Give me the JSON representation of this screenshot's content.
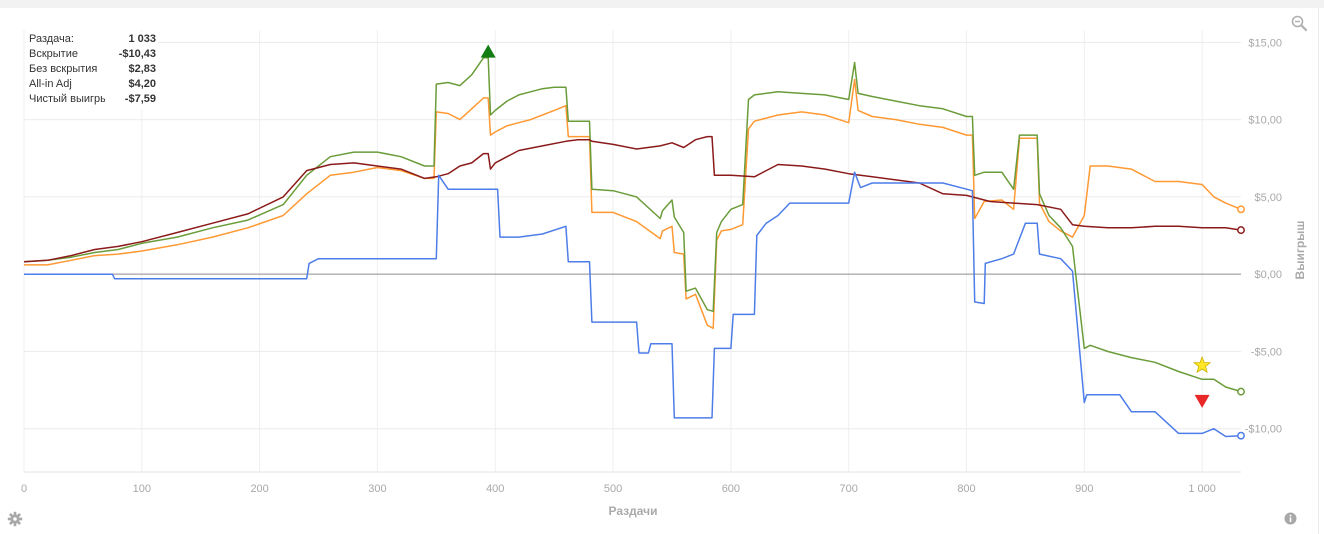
{
  "tooltip": {
    "rows": [
      {
        "label": "Раздача:",
        "value": "1 033"
      },
      {
        "label": "Вскрытие",
        "value": "-$10,43"
      },
      {
        "label": "Без вскрытия",
        "value": "$2,83"
      },
      {
        "label": "All-in Adj",
        "value": "$4,20"
      },
      {
        "label": "Чистый выигрыш",
        "value": "-$7,59"
      }
    ]
  },
  "icons": {
    "zoom": "zoom-icon",
    "settings": "gear-icon",
    "info": "info-icon"
  },
  "chart_data": {
    "type": "line",
    "xlabel": "Раздачи",
    "ylabel": "Выигрыш",
    "xlim": [
      0,
      1033
    ],
    "ylim": [
      -12.8,
      15.8
    ],
    "x_ticks": [
      0,
      100,
      200,
      300,
      400,
      500,
      600,
      700,
      800,
      900,
      1000
    ],
    "x_tick_labels": [
      "0",
      "100",
      "200",
      "300",
      "400",
      "500",
      "600",
      "700",
      "800",
      "900",
      "1 000"
    ],
    "y_ticks": [
      15,
      10,
      5,
      0,
      -5,
      -10
    ],
    "y_tick_labels": [
      "$15,00",
      "$10,00",
      "$5,00",
      "$0,00",
      "-$5,00",
      "-$10,00"
    ],
    "grid": true,
    "series": [
      {
        "color": "#ff9933",
        "points": [
          [
            0,
            0.6
          ],
          [
            20,
            0.6
          ],
          [
            40,
            0.9
          ],
          [
            60,
            1.2
          ],
          [
            80,
            1.3
          ],
          [
            100,
            1.5
          ],
          [
            130,
            1.9
          ],
          [
            160,
            2.4
          ],
          [
            190,
            3.0
          ],
          [
            220,
            3.8
          ],
          [
            240,
            5.2
          ],
          [
            260,
            6.4
          ],
          [
            280,
            6.6
          ],
          [
            300,
            6.9
          ],
          [
            320,
            6.7
          ],
          [
            340,
            6.2
          ],
          [
            348,
            6.2
          ],
          [
            350,
            10.5
          ],
          [
            360,
            10.4
          ],
          [
            370,
            10.0
          ],
          [
            380,
            10.7
          ],
          [
            390,
            11.4
          ],
          [
            394,
            11.4
          ],
          [
            396,
            9.0
          ],
          [
            400,
            9.2
          ],
          [
            410,
            9.6
          ],
          [
            420,
            9.8
          ],
          [
            430,
            10.0
          ],
          [
            440,
            10.3
          ],
          [
            450,
            10.6
          ],
          [
            460,
            10.9
          ],
          [
            462,
            8.9
          ],
          [
            480,
            8.9
          ],
          [
            482,
            4.0
          ],
          [
            500,
            4.0
          ],
          [
            520,
            3.4
          ],
          [
            540,
            2.3
          ],
          [
            542,
            2.8
          ],
          [
            550,
            3.1
          ],
          [
            552,
            1.4
          ],
          [
            560,
            1.3
          ],
          [
            562,
            -1.6
          ],
          [
            570,
            -1.3
          ],
          [
            580,
            -3.3
          ],
          [
            585,
            -3.5
          ],
          [
            588,
            2.2
          ],
          [
            592,
            2.8
          ],
          [
            600,
            2.9
          ],
          [
            610,
            3.2
          ],
          [
            615,
            9.4
          ],
          [
            620,
            9.9
          ],
          [
            640,
            10.3
          ],
          [
            660,
            10.5
          ],
          [
            680,
            10.3
          ],
          [
            700,
            9.8
          ],
          [
            705,
            12.6
          ],
          [
            708,
            10.6
          ],
          [
            720,
            10.2
          ],
          [
            740,
            10.0
          ],
          [
            760,
            9.7
          ],
          [
            780,
            9.5
          ],
          [
            800,
            9.0
          ],
          [
            805,
            9.0
          ],
          [
            807,
            3.6
          ],
          [
            815,
            4.7
          ],
          [
            830,
            4.8
          ],
          [
            840,
            4.2
          ],
          [
            845,
            8.8
          ],
          [
            860,
            8.8
          ],
          [
            862,
            4.6
          ],
          [
            870,
            3.4
          ],
          [
            880,
            2.8
          ],
          [
            890,
            2.4
          ],
          [
            900,
            3.8
          ],
          [
            905,
            7.0
          ],
          [
            920,
            7.0
          ],
          [
            940,
            6.8
          ],
          [
            960,
            6.0
          ],
          [
            980,
            6.0
          ],
          [
            1000,
            5.8
          ],
          [
            1010,
            5.0
          ],
          [
            1020,
            4.6
          ],
          [
            1033,
            4.2
          ]
        ]
      },
      {
        "color": "#6b9c3a",
        "points": [
          [
            0,
            0.8
          ],
          [
            20,
            0.9
          ],
          [
            40,
            1.1
          ],
          [
            60,
            1.4
          ],
          [
            80,
            1.6
          ],
          [
            100,
            2.0
          ],
          [
            130,
            2.4
          ],
          [
            160,
            3.0
          ],
          [
            190,
            3.5
          ],
          [
            220,
            4.5
          ],
          [
            240,
            6.4
          ],
          [
            260,
            7.6
          ],
          [
            280,
            7.9
          ],
          [
            300,
            7.9
          ],
          [
            320,
            7.6
          ],
          [
            340,
            7.0
          ],
          [
            348,
            7.0
          ],
          [
            350,
            12.3
          ],
          [
            360,
            12.4
          ],
          [
            370,
            12.2
          ],
          [
            380,
            12.9
          ],
          [
            390,
            14.0
          ],
          [
            394,
            14.0
          ],
          [
            396,
            10.3
          ],
          [
            400,
            10.6
          ],
          [
            410,
            11.2
          ],
          [
            420,
            11.6
          ],
          [
            430,
            11.8
          ],
          [
            440,
            12.0
          ],
          [
            450,
            12.1
          ],
          [
            460,
            12.1
          ],
          [
            462,
            9.9
          ],
          [
            480,
            9.9
          ],
          [
            482,
            5.5
          ],
          [
            500,
            5.4
          ],
          [
            520,
            5.0
          ],
          [
            540,
            3.6
          ],
          [
            542,
            4.1
          ],
          [
            550,
            4.8
          ],
          [
            552,
            3.7
          ],
          [
            560,
            2.7
          ],
          [
            562,
            -1.1
          ],
          [
            570,
            -0.9
          ],
          [
            580,
            -2.3
          ],
          [
            585,
            -2.4
          ],
          [
            588,
            2.7
          ],
          [
            592,
            3.4
          ],
          [
            600,
            4.2
          ],
          [
            610,
            4.5
          ],
          [
            615,
            11.3
          ],
          [
            620,
            11.6
          ],
          [
            640,
            11.8
          ],
          [
            660,
            11.7
          ],
          [
            680,
            11.6
          ],
          [
            700,
            11.3
          ],
          [
            705,
            13.7
          ],
          [
            708,
            11.7
          ],
          [
            720,
            11.5
          ],
          [
            740,
            11.2
          ],
          [
            760,
            10.9
          ],
          [
            780,
            10.7
          ],
          [
            800,
            10.2
          ],
          [
            805,
            10.2
          ],
          [
            807,
            6.4
          ],
          [
            815,
            6.6
          ],
          [
            830,
            6.6
          ],
          [
            840,
            5.5
          ],
          [
            845,
            9.0
          ],
          [
            860,
            9.0
          ],
          [
            862,
            5.2
          ],
          [
            870,
            3.8
          ],
          [
            880,
            3.0
          ],
          [
            890,
            1.8
          ],
          [
            900,
            -4.8
          ],
          [
            905,
            -4.6
          ],
          [
            920,
            -5.0
          ],
          [
            940,
            -5.4
          ],
          [
            960,
            -5.7
          ],
          [
            980,
            -6.3
          ],
          [
            1000,
            -6.8
          ],
          [
            1010,
            -6.8
          ],
          [
            1020,
            -7.3
          ],
          [
            1033,
            -7.6
          ]
        ]
      },
      {
        "color": "#8b1a1a",
        "points": [
          [
            0,
            0.8
          ],
          [
            20,
            0.9
          ],
          [
            40,
            1.2
          ],
          [
            60,
            1.6
          ],
          [
            80,
            1.8
          ],
          [
            100,
            2.1
          ],
          [
            130,
            2.7
          ],
          [
            160,
            3.3
          ],
          [
            190,
            3.9
          ],
          [
            220,
            5.0
          ],
          [
            240,
            6.7
          ],
          [
            260,
            7.1
          ],
          [
            280,
            7.2
          ],
          [
            300,
            7.0
          ],
          [
            320,
            6.8
          ],
          [
            340,
            6.2
          ],
          [
            350,
            6.3
          ],
          [
            360,
            6.5
          ],
          [
            370,
            7.0
          ],
          [
            380,
            7.2
          ],
          [
            390,
            7.8
          ],
          [
            394,
            7.8
          ],
          [
            396,
            6.8
          ],
          [
            400,
            7.2
          ],
          [
            420,
            8.0
          ],
          [
            440,
            8.3
          ],
          [
            460,
            8.6
          ],
          [
            470,
            8.7
          ],
          [
            480,
            8.7
          ],
          [
            482,
            8.6
          ],
          [
            500,
            8.4
          ],
          [
            520,
            8.1
          ],
          [
            540,
            8.3
          ],
          [
            550,
            8.5
          ],
          [
            560,
            8.2
          ],
          [
            570,
            8.7
          ],
          [
            580,
            8.9
          ],
          [
            584,
            8.9
          ],
          [
            586,
            6.4
          ],
          [
            600,
            6.4
          ],
          [
            620,
            6.3
          ],
          [
            640,
            7.1
          ],
          [
            660,
            7.0
          ],
          [
            680,
            6.8
          ],
          [
            700,
            6.5
          ],
          [
            720,
            6.3
          ],
          [
            740,
            6.1
          ],
          [
            760,
            5.9
          ],
          [
            780,
            5.2
          ],
          [
            800,
            5.1
          ],
          [
            820,
            4.7
          ],
          [
            840,
            4.6
          ],
          [
            860,
            4.5
          ],
          [
            880,
            4.2
          ],
          [
            890,
            3.2
          ],
          [
            900,
            3.1
          ],
          [
            920,
            3.0
          ],
          [
            940,
            3.0
          ],
          [
            960,
            3.1
          ],
          [
            980,
            3.1
          ],
          [
            1000,
            3.0
          ],
          [
            1020,
            3.0
          ],
          [
            1033,
            2.85
          ]
        ]
      },
      {
        "color": "#4d7de8",
        "points": [
          [
            0,
            0.0
          ],
          [
            75,
            0.0
          ],
          [
            77,
            -0.3
          ],
          [
            240,
            -0.3
          ],
          [
            242,
            0.7
          ],
          [
            250,
            1.0
          ],
          [
            350,
            1.0
          ],
          [
            352,
            6.4
          ],
          [
            360,
            5.5
          ],
          [
            402,
            5.5
          ],
          [
            404,
            2.4
          ],
          [
            420,
            2.4
          ],
          [
            440,
            2.6
          ],
          [
            460,
            3.1
          ],
          [
            462,
            0.8
          ],
          [
            480,
            0.8
          ],
          [
            482,
            -3.1
          ],
          [
            520,
            -3.1
          ],
          [
            522,
            -5.1
          ],
          [
            530,
            -5.1
          ],
          [
            532,
            -4.5
          ],
          [
            550,
            -4.5
          ],
          [
            552,
            -9.3
          ],
          [
            584,
            -9.3
          ],
          [
            586,
            -4.8
          ],
          [
            600,
            -4.8
          ],
          [
            602,
            -2.6
          ],
          [
            620,
            -2.6
          ],
          [
            622,
            2.5
          ],
          [
            630,
            3.3
          ],
          [
            640,
            3.8
          ],
          [
            650,
            4.6
          ],
          [
            700,
            4.6
          ],
          [
            705,
            6.6
          ],
          [
            710,
            5.6
          ],
          [
            720,
            5.9
          ],
          [
            780,
            5.9
          ],
          [
            805,
            5.4
          ],
          [
            807,
            -1.8
          ],
          [
            815,
            -1.9
          ],
          [
            816,
            0.7
          ],
          [
            830,
            1.0
          ],
          [
            840,
            1.3
          ],
          [
            850,
            3.3
          ],
          [
            860,
            3.3
          ],
          [
            862,
            1.3
          ],
          [
            880,
            1.0
          ],
          [
            890,
            0.2
          ],
          [
            900,
            -8.3
          ],
          [
            902,
            -7.8
          ],
          [
            930,
            -7.8
          ],
          [
            940,
            -8.9
          ],
          [
            960,
            -8.9
          ],
          [
            980,
            -10.3
          ],
          [
            1000,
            -10.3
          ],
          [
            1010,
            -10.0
          ],
          [
            1020,
            -10.5
          ],
          [
            1033,
            -10.45
          ]
        ]
      }
    ],
    "markers": [
      {
        "type": "triangle-up",
        "color": "#137d13",
        "x": 394,
        "y": 14.4
      },
      {
        "type": "star",
        "color": "#ffe628",
        "x": 1000,
        "y": -5.9
      },
      {
        "type": "triangle-down",
        "color": "#e82828",
        "x": 1000,
        "y": -8.2
      }
    ]
  }
}
